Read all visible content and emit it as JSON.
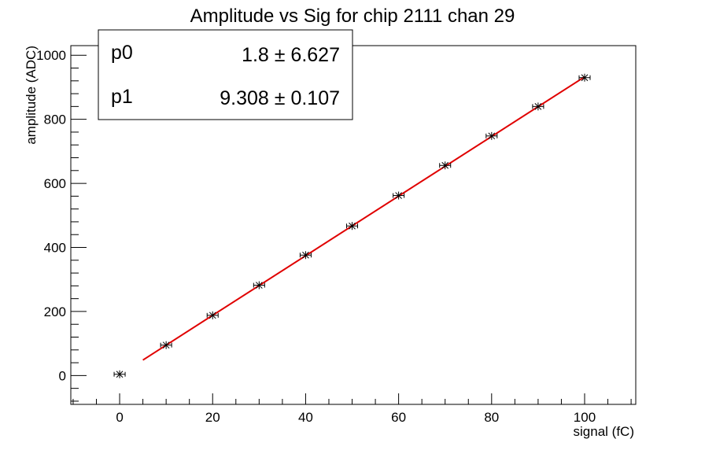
{
  "chart_data": {
    "type": "scatter",
    "title": "Amplitude vs Sig for chip 2111 chan 29",
    "xlabel": "signal (fC)",
    "ylabel": "amplitude (ADC)",
    "xlim": [
      -10.5,
      111
    ],
    "ylim": [
      -90,
      1030
    ],
    "x_ticks": [
      0,
      20,
      40,
      60,
      80,
      100
    ],
    "y_ticks": [
      0,
      200,
      400,
      600,
      800,
      1000
    ],
    "grid": false,
    "series": [
      {
        "x": [
          0,
          10,
          20,
          30,
          40,
          50,
          60,
          70,
          80,
          90,
          100
        ],
        "y": [
          4,
          95,
          188,
          282,
          376,
          467,
          562,
          656,
          748,
          840,
          930
        ],
        "marker": "star",
        "color": "#000000"
      }
    ],
    "fit": {
      "type": "linear",
      "x_range": [
        5,
        100
      ],
      "p0": 1.8,
      "p1": 9.308,
      "color": "#e00000"
    },
    "stats_box": {
      "position": "top-left",
      "rows": [
        {
          "name": "p0",
          "value": "1.8 ± 6.627"
        },
        {
          "name": "p1",
          "value": "9.308 ± 0.107"
        }
      ]
    }
  }
}
